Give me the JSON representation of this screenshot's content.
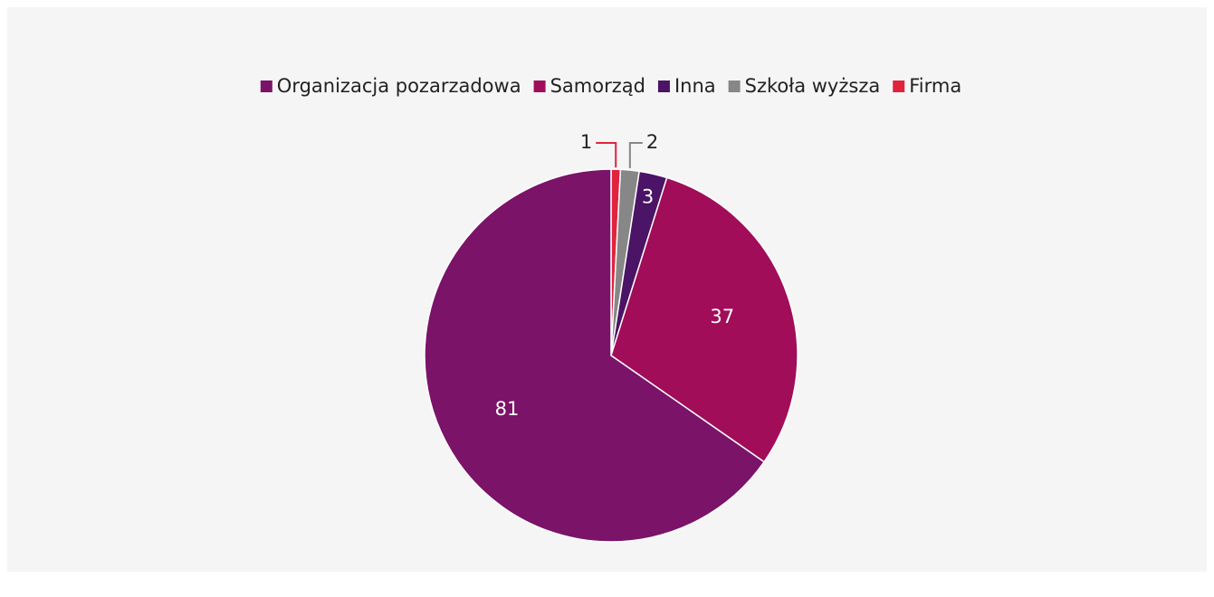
{
  "chart_data": {
    "type": "pie",
    "legend": "top",
    "categories": [
      "Firma",
      "Szkoła wyższa",
      "Inna",
      "Samorząd",
      "Organizacja pozarzadowa"
    ],
    "values": [
      1,
      2,
      3,
      37,
      81
    ],
    "colors": [
      "#e0243e",
      "#878787",
      "#4b1466",
      "#a10d59",
      "#7b1369"
    ]
  }
}
